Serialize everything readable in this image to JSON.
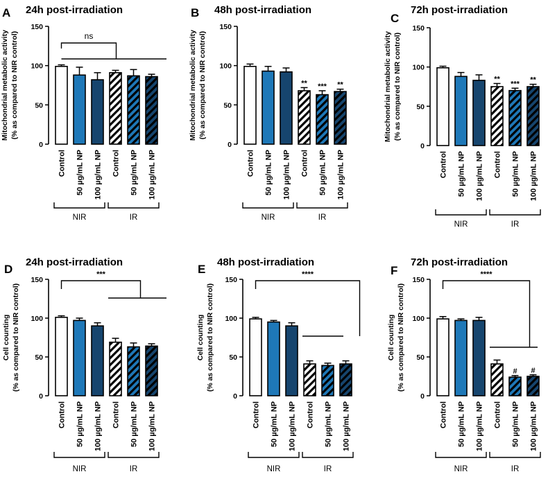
{
  "colors": {
    "control": "#ffffff",
    "np50": "#1e78b8",
    "np100": "#16456e",
    "outline": "#000000",
    "hatch": "#000000"
  },
  "group_labels": [
    "NIR",
    "IR"
  ],
  "chart_data": [
    {
      "panel": "A",
      "type": "bar",
      "title": "24h post-irradiation",
      "ylabel_lines": [
        "Mitochondrial metabolic activity",
        "(% as compared to NIR control)"
      ],
      "ylim": [
        0,
        150
      ],
      "yticks": [
        "0",
        "50",
        "100",
        "150"
      ],
      "categories": [
        "Control",
        "50 µg/mL NP",
        "100 µg/mL NP",
        "Control",
        "50 µg/mL NP",
        "100 µg/mL NP"
      ],
      "values": [
        99,
        88,
        82,
        91,
        87,
        86
      ],
      "errors": [
        2,
        10,
        9,
        3,
        8,
        3
      ],
      "bar_labels": [
        "",
        "",
        "",
        "",
        "",
        ""
      ],
      "significance": {
        "label": "ns",
        "kind": "vs-group"
      }
    },
    {
      "panel": "B",
      "type": "bar",
      "title": "48h post-irradiation",
      "ylabel_lines": [
        "Mitochondrial metabolic activity",
        "(% as compared to NIR control)"
      ],
      "ylim": [
        0,
        150
      ],
      "yticks": [
        "0",
        "50",
        "100",
        "150"
      ],
      "categories": [
        "Control",
        "50 µg/mL NP",
        "100 µg/mL NP",
        "Control",
        "50 µg/mL NP",
        "100 µg/mL NP"
      ],
      "values": [
        99,
        93,
        92,
        68,
        63,
        67
      ],
      "errors": [
        3,
        6,
        5,
        4,
        5,
        3
      ],
      "bar_labels": [
        "",
        "",
        "",
        "**",
        "***",
        "**"
      ],
      "significance": null
    },
    {
      "panel": "C",
      "type": "bar",
      "title": "72h post-irradiation",
      "ylabel_lines": [
        "Mitochondrial metabolic activity",
        "(% as compared to NIR control)"
      ],
      "ylim": [
        0,
        150
      ],
      "yticks": [
        "0",
        "50",
        "100",
        "150"
      ],
      "categories": [
        "Control",
        "50 µg/mL NP",
        "100 µg/mL NP",
        "Control",
        "50 µg/mL NP",
        "100 µg/mL NP"
      ],
      "values": [
        99,
        88,
        83,
        75,
        70,
        75
      ],
      "errors": [
        2,
        5,
        7,
        4,
        3,
        3
      ],
      "bar_labels": [
        "",
        "",
        "",
        "**",
        "***",
        "**"
      ],
      "significance": null
    },
    {
      "panel": "D",
      "type": "bar",
      "title": "24h post-irradiation",
      "ylabel_lines": [
        "Cell counting",
        "(% as compared to NIR control)"
      ],
      "ylim": [
        0,
        150
      ],
      "yticks": [
        "0",
        "50",
        "100",
        "150"
      ],
      "categories": [
        "Control",
        "50 µg/mL NP",
        "100 µg/mL NP",
        "Control",
        "50 µg/mL NP",
        "100 µg/mL NP"
      ],
      "values": [
        101,
        97,
        90,
        69,
        63,
        64
      ],
      "errors": [
        2,
        3,
        4,
        5,
        5,
        3
      ],
      "bar_labels": [
        "",
        "",
        "",
        "",
        "",
        ""
      ],
      "significance": {
        "label": "***",
        "kind": "vs-group"
      }
    },
    {
      "panel": "E",
      "type": "bar",
      "title": "48h post-irradiation",
      "ylabel_lines": [
        "Cell counting",
        "(% as compared to NIR control)"
      ],
      "ylim": [
        0,
        150
      ],
      "yticks": [
        "0",
        "50",
        "100",
        "150"
      ],
      "categories": [
        "Control",
        "50 µg/mL NP",
        "100 µg/mL NP",
        "Control",
        "50 µg/mL NP",
        "100 µg/mL NP"
      ],
      "values": [
        99,
        95,
        90,
        41,
        39,
        41
      ],
      "errors": [
        2,
        2,
        4,
        4,
        3,
        4
      ],
      "bar_labels": [
        "",
        "",
        "",
        "",
        "",
        ""
      ],
      "significance": {
        "label": "****",
        "kind": "vs-group"
      }
    },
    {
      "panel": "F",
      "type": "bar",
      "title": "72h post-irradiation",
      "ylabel_lines": [
        "Cell counting",
        "(% as compared to NIR control)"
      ],
      "ylim": [
        0,
        150
      ],
      "yticks": [
        "0",
        "50",
        "100",
        "150"
      ],
      "categories": [
        "Control",
        "50 µg/mL NP",
        "100 µg/mL NP",
        "Control",
        "50 µg/mL NP",
        "100 µg/mL NP"
      ],
      "values": [
        99,
        97,
        97,
        41,
        24,
        25
      ],
      "errors": [
        3,
        2,
        4,
        5,
        2,
        2
      ],
      "bar_labels": [
        "",
        "",
        "",
        "",
        "#",
        "#"
      ],
      "significance": {
        "label": "****",
        "kind": "vs-group"
      }
    }
  ]
}
